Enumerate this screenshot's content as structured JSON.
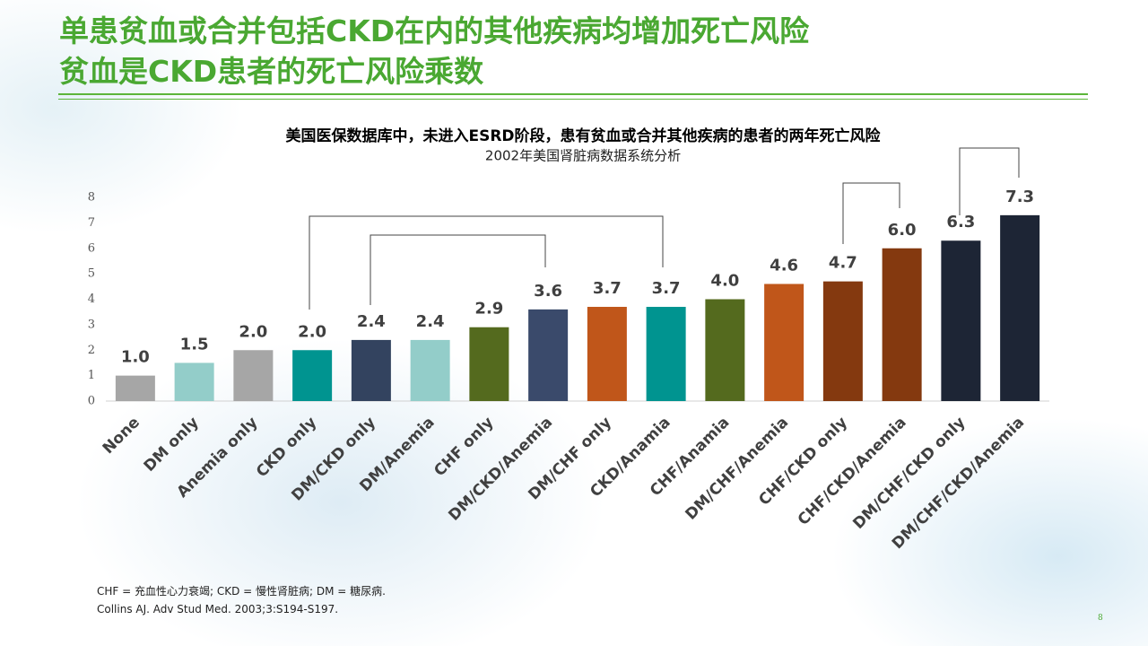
{
  "header": {
    "title_lines": [
      "单患贫血或合并包括CKD在内的其他疾病均增加死亡风险",
      "贫血是CKD患者的死亡风险乘数"
    ]
  },
  "footnotes": [
    "CHF = 充血性心力衰竭; CKD = 慢性肾脏病; DM = 糖尿病.",
    "Collins AJ. Adv Stud Med. 2003;3:S194-S197."
  ],
  "page_number": "8",
  "chart_data": {
    "type": "bar",
    "title": "美国医保数据库中，未进入ESRD阶段，患有贫血或合并其他疾病的患者的两年死亡风险",
    "subtitle": "2002年美国肾脏病数据系统分析",
    "categories": [
      "None",
      "DM only",
      "Anemia only",
      "CKD only",
      "DM/CKD only",
      "DM/Anemia",
      "CHF only",
      "DM/CKD/Anemia",
      "DM/CHF only",
      "CKD/Anamia",
      "CHF/Anamia",
      "DM/CHF/Anemia",
      "CHF/CKD only",
      "CHF/CKD/Anemia",
      "DM/CHF/CKD only",
      "DM/CHF/CKD/Anemia"
    ],
    "values": [
      1.0,
      1.5,
      2.0,
      2.0,
      2.4,
      2.4,
      2.9,
      3.6,
      3.7,
      3.7,
      4.0,
      4.6,
      4.7,
      6.0,
      6.3,
      7.3
    ],
    "value_labels": [
      "1.0",
      "1.5",
      "2.0",
      "2.0",
      "2.4",
      "2.4",
      "2.9",
      "3.6",
      "3.7",
      "3.7",
      "4.0",
      "4.6",
      "4.7",
      "6.0",
      "6.3",
      "7.3"
    ],
    "colors": [
      "#a6a6a6",
      "#93cdc9",
      "#a6a6a6",
      "#009490",
      "#33435f",
      "#93cdc9",
      "#546a1e",
      "#3a4a6b",
      "#c0561a",
      "#009490",
      "#546a1e",
      "#c0561a",
      "#84390f",
      "#84390f",
      "#1d2535",
      "#1d2535"
    ],
    "ylim": [
      0,
      8
    ],
    "yticks": [
      0,
      1,
      2,
      3,
      4,
      5,
      6,
      7,
      8
    ]
  }
}
